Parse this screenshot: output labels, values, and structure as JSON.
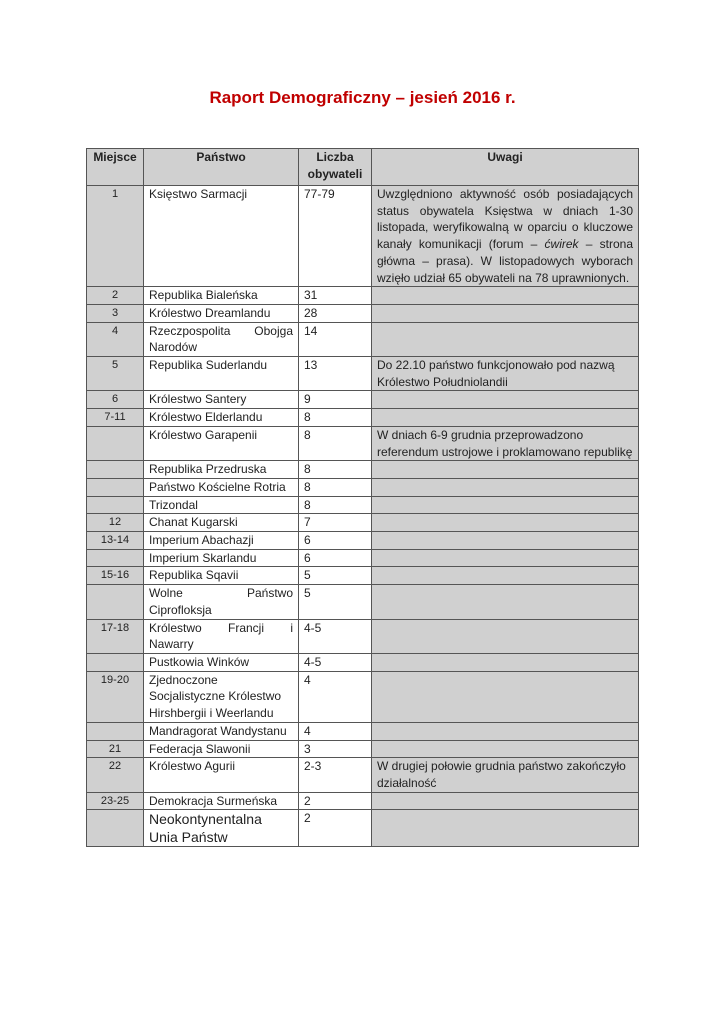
{
  "title": "Raport Demograficzny – jesień 2016 r.",
  "table": {
    "headers": [
      "Miejsce",
      "Państwo",
      "Liczba obywateli",
      "Uwagi"
    ],
    "rows": [
      {
        "place": "1",
        "name": "Księstwo Sarmacji",
        "count": "77-79",
        "notes": "Uwzględniono aktywność osób posiadających status obywatela Księstwa w dniach 1-30 listopada, weryfikowalną w oparciu o kluczowe kanały komunikacji (forum – ćwirek – strona główna – prasa). W listopadowych wyborach wzięło udział 65 obywateli na 78 uprawnionych."
      },
      {
        "place": "2",
        "name": "Republika Bialeńska",
        "count": "31",
        "notes": ""
      },
      {
        "place": "3",
        "name": "Królestwo Dreamlandu",
        "count": "28",
        "notes": ""
      },
      {
        "place": "4",
        "name": "Rzeczpospolita Obojga Narodów",
        "count": "14",
        "notes": ""
      },
      {
        "place": "5",
        "name": "Republika Suderlandu",
        "count": "13",
        "notes": "Do 22.10 państwo funkcjonowało pod nazwą Królestwo Południolandii"
      },
      {
        "place": "6",
        "name": "Królestwo Santery",
        "count": "9",
        "notes": ""
      },
      {
        "place": "7-11",
        "name": "Królestwo Elderlandu",
        "count": "8",
        "notes": ""
      },
      {
        "place": "",
        "name": "Królestwo Garapenii",
        "count": "8",
        "notes": "W dniach 6-9 grudnia przeprowadzono referendum ustrojowe i proklamowano republikę"
      },
      {
        "place": "",
        "name": "Republika Przedruska",
        "count": "8",
        "notes": ""
      },
      {
        "place": "",
        "name": "Państwo Kościelne Rotria",
        "count": "8",
        "notes": ""
      },
      {
        "place": "",
        "name": "Trizondal",
        "count": "8",
        "notes": ""
      },
      {
        "place": "12",
        "name": "Chanat Kugarski",
        "count": "7",
        "notes": ""
      },
      {
        "place": "13-14",
        "name": "Imperium Abachazji",
        "count": "6",
        "notes": ""
      },
      {
        "place": "",
        "name": "Imperium Skarlandu",
        "count": "6",
        "notes": ""
      },
      {
        "place": "15-16",
        "name": "Republika Sqavii",
        "count": "5",
        "notes": ""
      },
      {
        "place": "",
        "name": "Wolne Państwo Ciprofloksja",
        "count": "5",
        "notes": ""
      },
      {
        "place": "17-18",
        "name": "Królestwo Francji i Nawarry",
        "count": "4-5",
        "notes": ""
      },
      {
        "place": "",
        "name": "Pustkowia Winków",
        "count": "4-5",
        "notes": ""
      },
      {
        "place": "19-20",
        "name": "Zjednoczone Socjalistyczne Królestwo Hirshbergii i Weerlandu",
        "count": "4",
        "notes": ""
      },
      {
        "place": "",
        "name": "Mandragorat Wandystanu",
        "count": "4",
        "notes": ""
      },
      {
        "place": "21",
        "name": "Federacja Slawonii",
        "count": "3",
        "notes": ""
      },
      {
        "place": "22",
        "name": "Królestwo Agurii",
        "count": "2-3",
        "notes": "W drugiej połowie grudnia państwo zakończyło działalność"
      },
      {
        "place": "23-25",
        "name": "Demokracja Surmeńska",
        "count": "2",
        "notes": ""
      },
      {
        "place": "",
        "name": "Neokontynentalna Unia Państw",
        "count": "2",
        "notes": ""
      }
    ]
  },
  "colors": {
    "title": "#c00000",
    "shaded_cell": "#d0d0d0"
  }
}
